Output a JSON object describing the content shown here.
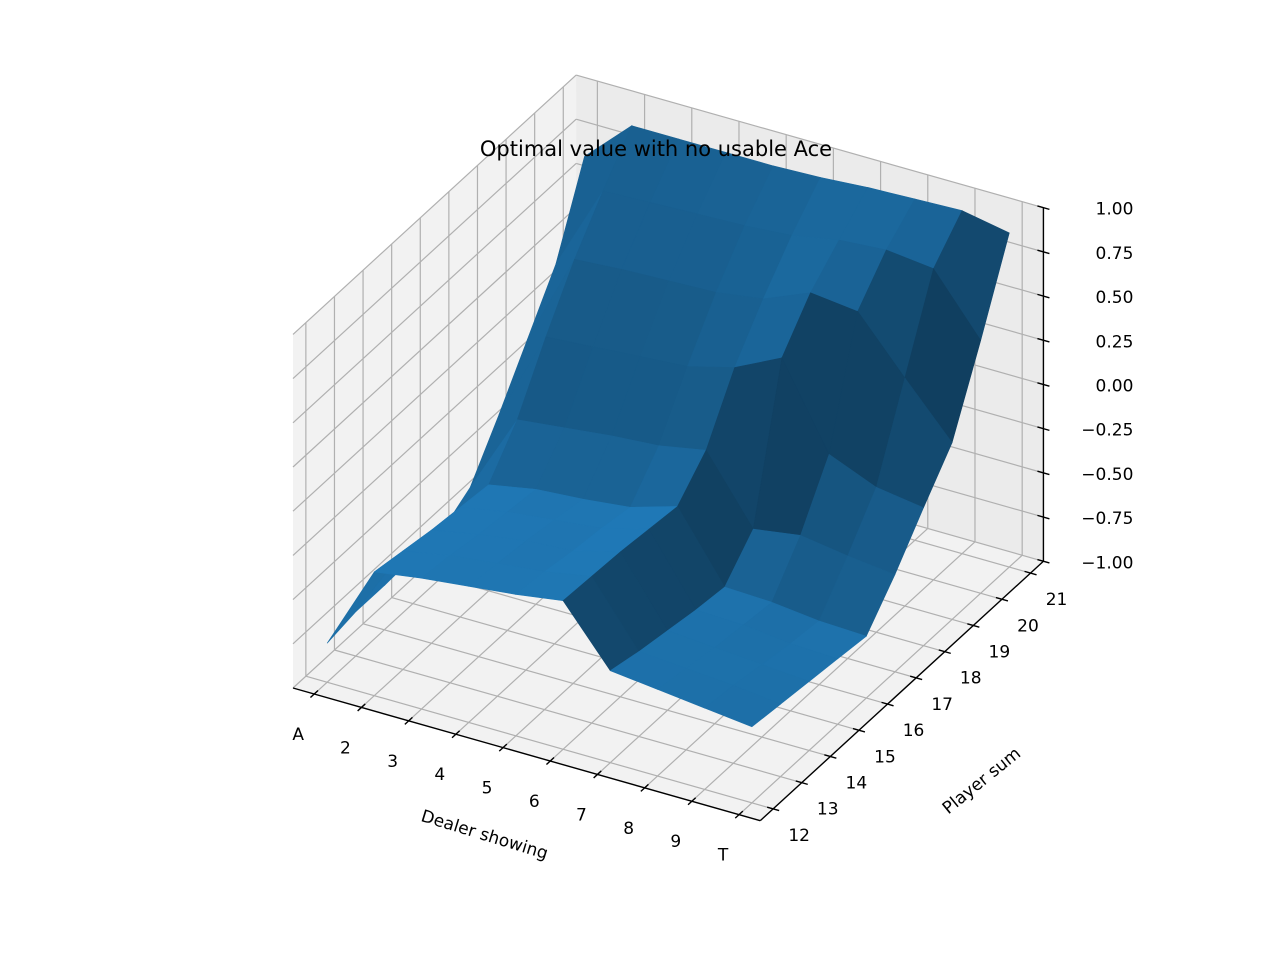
{
  "chart_data": {
    "type": "surface",
    "title": "Optimal value with no usable Ace",
    "xlabel": "Dealer showing",
    "ylabel": "Player sum",
    "zlabel": "",
    "x_ticklabels": [
      "A",
      "2",
      "3",
      "4",
      "5",
      "6",
      "7",
      "8",
      "9",
      "T"
    ],
    "y_ticklabels": [
      "12",
      "13",
      "14",
      "15",
      "16",
      "17",
      "18",
      "19",
      "20",
      "21"
    ],
    "z_ticklabels": [
      "−1.00",
      "−0.75",
      "−0.50",
      "−0.25",
      "0.00",
      "0.25",
      "0.50",
      "0.75",
      "1.00"
    ],
    "zlim": [
      -1.0,
      1.0
    ],
    "grid": true,
    "surface_color": "#1f77b4",
    "rows_note": "values[i][j]: i = dealer showing (A..T), j = player sum (12..21)",
    "values": [
      [
        -0.78,
        -0.75,
        -0.75,
        -0.74,
        -0.74,
        -0.64,
        -0.38,
        -0.1,
        0.18,
        0.64
      ],
      [
        -0.3,
        -0.33,
        -0.36,
        -0.38,
        -0.4,
        -0.18,
        0.14,
        0.43,
        0.67,
        0.89
      ],
      [
        -0.26,
        -0.28,
        -0.31,
        -0.33,
        -0.35,
        -0.15,
        0.16,
        0.45,
        0.68,
        0.89
      ],
      [
        -0.23,
        -0.25,
        -0.27,
        -0.3,
        -0.33,
        -0.12,
        0.18,
        0.46,
        0.69,
        0.89
      ],
      [
        -0.2,
        -0.22,
        -0.25,
        -0.27,
        -0.3,
        -0.1,
        0.2,
        0.47,
        0.7,
        0.89
      ],
      [
        -0.16,
        -0.17,
        -0.18,
        -0.2,
        -0.22,
        -0.05,
        0.27,
        0.51,
        0.72,
        0.9
      ],
      [
        -0.48,
        -0.52,
        -0.55,
        -0.58,
        -0.6,
        -0.42,
        0.4,
        0.62,
        0.77,
        0.92
      ],
      [
        -0.51,
        -0.54,
        -0.57,
        -0.59,
        -0.61,
        -0.38,
        -0.07,
        0.59,
        0.79,
        0.93
      ],
      [
        -0.54,
        -0.56,
        -0.59,
        -0.62,
        -0.64,
        -0.42,
        -0.18,
        0.29,
        0.76,
        0.94
      ],
      [
        -0.57,
        -0.59,
        -0.61,
        -0.63,
        -0.65,
        -0.45,
        -0.22,
        0.0,
        0.43,
        0.89
      ]
    ]
  }
}
